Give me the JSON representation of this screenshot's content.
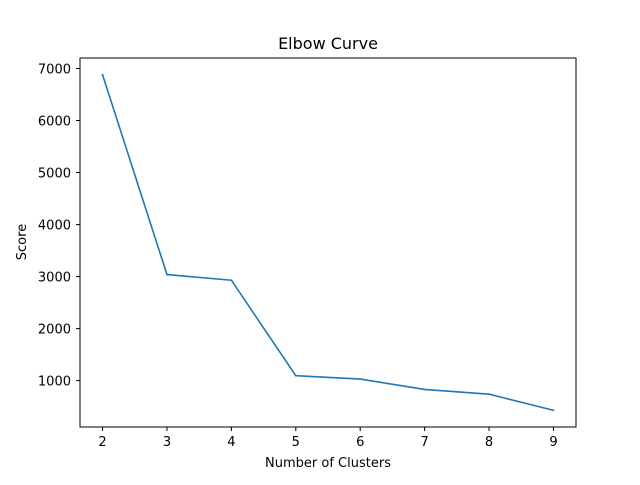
{
  "chart_data": {
    "type": "line",
    "title": "Elbow Curve",
    "xlabel": "Number of Clusters",
    "ylabel": "Score",
    "x": [
      2,
      3,
      4,
      5,
      6,
      7,
      8,
      9
    ],
    "series": [
      {
        "values": [
          6880,
          3040,
          2930,
          1095,
          1030,
          830,
          740,
          430
        ],
        "color": "#1f77b4"
      }
    ],
    "xticks": [
      2,
      3,
      4,
      5,
      6,
      7,
      8,
      9
    ],
    "yticks": [
      1000,
      2000,
      3000,
      4000,
      5000,
      6000,
      7000
    ],
    "xlim": [
      1.65,
      9.35
    ],
    "ylim": [
      108.5,
      7202.5
    ],
    "grid": false,
    "legend": "none"
  }
}
